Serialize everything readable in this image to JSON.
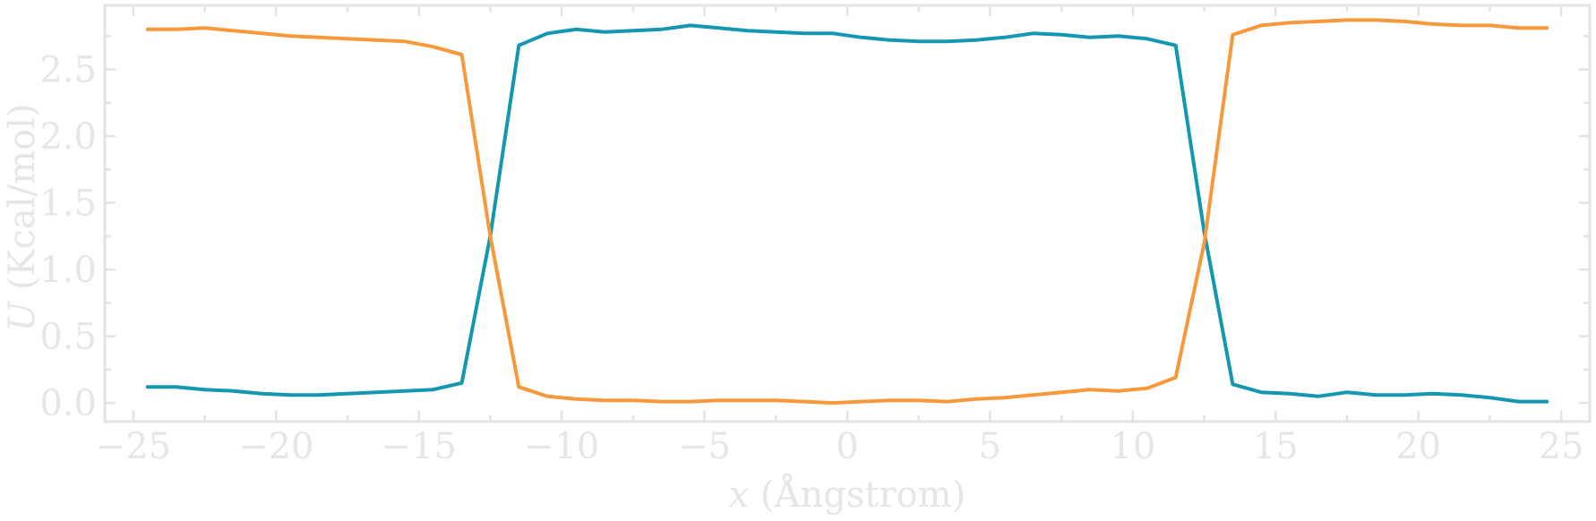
{
  "chart_data": {
    "type": "line",
    "xlabel_var": "x",
    "xlabel_rest": " (Ångstrom)",
    "ylabel_var": "U",
    "ylabel_rest": " (Kcal/mol)",
    "xlim": [
      -26,
      26
    ],
    "ylim": [
      -0.14,
      2.98
    ],
    "x_ticks": [
      {
        "value": -25,
        "label": "−25"
      },
      {
        "value": -20,
        "label": "−20"
      },
      {
        "value": -15,
        "label": "−15"
      },
      {
        "value": -10,
        "label": "−10"
      },
      {
        "value": -5,
        "label": "−5"
      },
      {
        "value": 0,
        "label": "0"
      },
      {
        "value": 5,
        "label": "5"
      },
      {
        "value": 10,
        "label": "10"
      },
      {
        "value": 15,
        "label": "15"
      },
      {
        "value": 20,
        "label": "20"
      },
      {
        "value": 25,
        "label": "25"
      }
    ],
    "y_ticks": [
      {
        "value": 0.0,
        "label": "0.0"
      },
      {
        "value": 0.5,
        "label": "0.5"
      },
      {
        "value": 1.0,
        "label": "1.0"
      },
      {
        "value": 1.5,
        "label": "1.5"
      },
      {
        "value": 2.0,
        "label": "2.0"
      },
      {
        "value": 2.5,
        "label": "2.5"
      }
    ],
    "x_minor_step": 2.5,
    "y_minor_step": 0.25,
    "grid": false,
    "x": [
      -24.5,
      -23.5,
      -22.5,
      -21.5,
      -20.5,
      -19.5,
      -18.5,
      -17.5,
      -16.5,
      -15.5,
      -14.5,
      -13.5,
      -12.5,
      -11.5,
      -10.5,
      -9.5,
      -8.5,
      -7.5,
      -6.5,
      -5.5,
      -4.5,
      -3.5,
      -2.5,
      -1.5,
      -0.5,
      0.5,
      1.5,
      2.5,
      3.5,
      4.5,
      5.5,
      6.5,
      7.5,
      8.5,
      9.5,
      10.5,
      11.5,
      12.5,
      13.5,
      14.5,
      15.5,
      16.5,
      17.5,
      18.5,
      19.5,
      20.5,
      21.5,
      22.5,
      23.5,
      24.5
    ],
    "series": [
      {
        "color": "#1497b0",
        "values": [
          0.12,
          0.12,
          0.1,
          0.09,
          0.07,
          0.06,
          0.06,
          0.07,
          0.08,
          0.09,
          0.1,
          0.15,
          1.25,
          2.68,
          2.77,
          2.8,
          2.78,
          2.79,
          2.8,
          2.83,
          2.81,
          2.79,
          2.78,
          2.77,
          2.77,
          2.74,
          2.72,
          2.71,
          2.71,
          2.72,
          2.74,
          2.77,
          2.76,
          2.74,
          2.75,
          2.73,
          2.68,
          1.28,
          0.14,
          0.08,
          0.07,
          0.05,
          0.08,
          0.06,
          0.06,
          0.07,
          0.06,
          0.04,
          0.01,
          0.01
        ]
      },
      {
        "color": "#f7993a",
        "values": [
          2.8,
          2.8,
          2.81,
          2.79,
          2.77,
          2.75,
          2.74,
          2.73,
          2.72,
          2.71,
          2.67,
          2.61,
          1.25,
          0.12,
          0.05,
          0.03,
          0.02,
          0.02,
          0.01,
          0.01,
          0.02,
          0.02,
          0.02,
          0.01,
          0.0,
          0.01,
          0.02,
          0.02,
          0.01,
          0.03,
          0.04,
          0.06,
          0.08,
          0.1,
          0.09,
          0.11,
          0.19,
          1.2,
          2.76,
          2.83,
          2.85,
          2.86,
          2.87,
          2.87,
          2.86,
          2.84,
          2.83,
          2.83,
          2.81,
          2.81
        ]
      }
    ]
  }
}
